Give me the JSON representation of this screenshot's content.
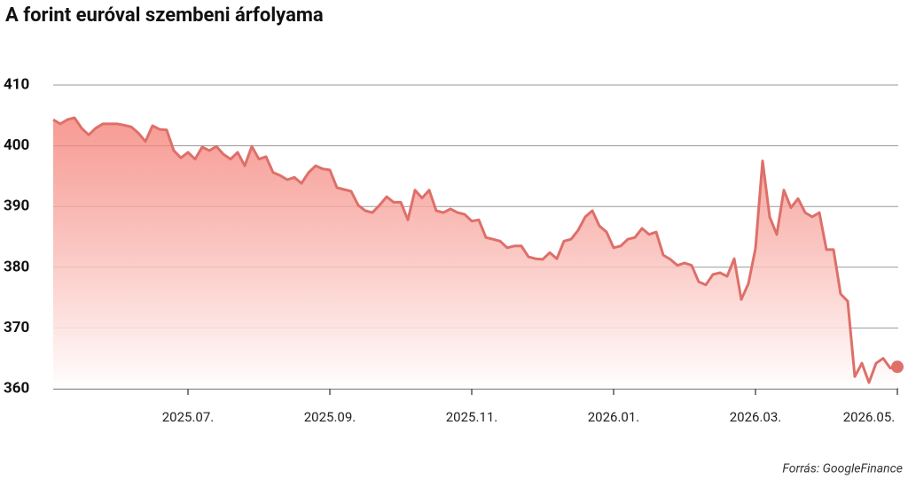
{
  "chart_data": {
    "type": "area-line",
    "title": "A forint euróval szembeni árfolyama",
    "source": "Forrás: GoogleFinance",
    "color": "#de6f69",
    "ylim": [
      360,
      410
    ],
    "yticks": [
      360,
      370,
      380,
      390,
      400,
      410
    ],
    "grid": true,
    "categories": [
      null,
      null,
      null,
      null,
      null,
      null,
      null,
      null,
      null,
      null,
      null,
      null,
      null,
      null,
      null,
      null,
      null,
      null,
      null,
      "2025.07.",
      null,
      null,
      null,
      null,
      null,
      null,
      null,
      null,
      null,
      null,
      null,
      null,
      null,
      null,
      null,
      null,
      null,
      null,
      null,
      "2025.09.",
      null,
      null,
      null,
      null,
      null,
      null,
      null,
      null,
      null,
      null,
      null,
      null,
      null,
      null,
      null,
      null,
      null,
      null,
      null,
      "2025.11.",
      null,
      null,
      null,
      null,
      null,
      null,
      null,
      null,
      null,
      null,
      null,
      null,
      null,
      null,
      null,
      null,
      null,
      null,
      null,
      "2026.01.",
      null,
      null,
      null,
      null,
      null,
      null,
      null,
      null,
      null,
      null,
      null,
      null,
      null,
      null,
      null,
      null,
      null,
      null,
      null,
      "2026.03.",
      null,
      null,
      null,
      null,
      null,
      null,
      null,
      null,
      null,
      null,
      null,
      null,
      null,
      null,
      null,
      null,
      null,
      null,
      null,
      "2026.05."
    ],
    "values": [
      404.3,
      403.6,
      404.3,
      404.6,
      402.9,
      401.8,
      402.9,
      403.6,
      403.6,
      403.6,
      403.4,
      403.1,
      402.1,
      400.7,
      403.3,
      402.7,
      402.6,
      399.2,
      398.0,
      398.9,
      397.8,
      399.8,
      399.2,
      399.9,
      398.6,
      397.8,
      398.9,
      396.7,
      399.9,
      397.8,
      398.2,
      395.6,
      395.1,
      394.4,
      394.8,
      393.8,
      395.6,
      396.7,
      396.2,
      396.0,
      393.1,
      392.8,
      392.5,
      390.2,
      389.3,
      389.0,
      390.2,
      391.6,
      390.7,
      390.7,
      387.8,
      392.7,
      391.4,
      392.7,
      389.3,
      389.0,
      389.6,
      389.0,
      388.7,
      387.6,
      387.8,
      384.9,
      384.6,
      384.3,
      383.2,
      383.5,
      383.5,
      381.7,
      381.4,
      381.3,
      382.4,
      381.4,
      384.3,
      384.6,
      386.1,
      388.3,
      389.3,
      386.8,
      385.8,
      383.2,
      383.5,
      384.6,
      384.9,
      386.4,
      385.4,
      385.8,
      382.0,
      381.3,
      380.3,
      380.7,
      380.3,
      377.6,
      377.1,
      378.8,
      379.1,
      378.5,
      381.4,
      374.7,
      377.3,
      383.1,
      397.5,
      388.3,
      385.4,
      392.7,
      389.8,
      391.3,
      389.0,
      388.3,
      389.0,
      382.9,
      382.9,
      375.6,
      374.4,
      362.0,
      364.2,
      361.0,
      364.2,
      365.0,
      363.4,
      363.6
    ]
  }
}
